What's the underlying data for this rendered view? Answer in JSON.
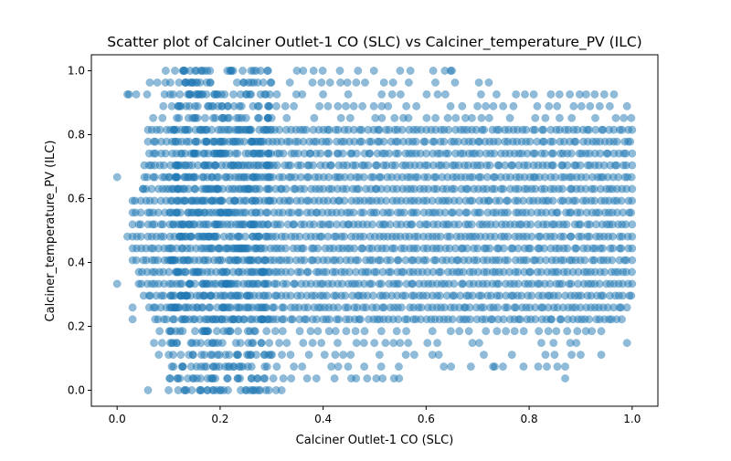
{
  "chart_data": {
    "type": "scatter",
    "title": "Scatter plot of Calciner Outlet-1 CO (SLC) vs Calciner_temperature_PV (ILC)",
    "xlabel": "Calciner Outlet-1 CO (SLC)",
    "ylabel": "Calciner_temperature_PV (ILC)",
    "xlim": [
      -0.05,
      1.05
    ],
    "ylim": [
      -0.05,
      1.05
    ],
    "xticks": [
      "0.0",
      "0.2",
      "0.4",
      "0.6",
      "0.8",
      "1.0"
    ],
    "yticks": [
      "0.0",
      "0.2",
      "0.4",
      "0.6",
      "0.8",
      "1.0"
    ],
    "grid": false,
    "legend": "none",
    "marker_color": "#1f77b4",
    "marker_alpha": 0.5,
    "y_levels": [
      0.0,
      0.037,
      0.074,
      0.111,
      0.148,
      0.185,
      0.222,
      0.259,
      0.296,
      0.333,
      0.37,
      0.407,
      0.444,
      0.481,
      0.519,
      0.556,
      0.593,
      0.63,
      0.667,
      0.704,
      0.741,
      0.778,
      0.815,
      0.852,
      0.889,
      0.926,
      0.963,
      1.0
    ],
    "y_level_x_ranges": [
      [
        0.1,
        0.32
      ],
      [
        0.09,
        0.55
      ],
      [
        0.09,
        0.87
      ],
      [
        0.08,
        0.9
      ],
      [
        0.07,
        0.93
      ],
      [
        0.08,
        0.96
      ],
      [
        0.07,
        0.98
      ],
      [
        0.06,
        0.99
      ],
      [
        0.05,
        1.0
      ],
      [
        0.04,
        1.0
      ],
      [
        0.04,
        1.0
      ],
      [
        0.03,
        1.0
      ],
      [
        0.03,
        1.0
      ],
      [
        0.03,
        1.0
      ],
      [
        0.03,
        1.0
      ],
      [
        0.03,
        1.0
      ],
      [
        0.03,
        1.0
      ],
      [
        0.05,
        1.0
      ],
      [
        0.05,
        1.0
      ],
      [
        0.05,
        1.0
      ],
      [
        0.06,
        1.0
      ],
      [
        0.06,
        1.0
      ],
      [
        0.06,
        1.0
      ],
      [
        0.07,
        1.0
      ],
      [
        0.07,
        0.99
      ],
      [
        0.02,
        0.98
      ],
      [
        0.06,
        0.74
      ],
      [
        0.06,
        0.65
      ]
    ],
    "outliers": [
      {
        "x": 0.0,
        "y": 0.667
      },
      {
        "x": 0.0,
        "y": 0.333
      },
      {
        "x": 0.02,
        "y": 0.481
      },
      {
        "x": 0.02,
        "y": 0.926
      },
      {
        "x": 0.05,
        "y": 0.63
      },
      {
        "x": 0.06,
        "y": 0.0
      },
      {
        "x": 0.03,
        "y": 0.222
      },
      {
        "x": 0.03,
        "y": 0.259
      },
      {
        "x": 0.87,
        "y": 0.037
      },
      {
        "x": 0.73,
        "y": 0.074
      },
      {
        "x": 0.65,
        "y": 1.0
      },
      {
        "x": 0.99,
        "y": 0.148
      },
      {
        "x": 0.94,
        "y": 0.111
      }
    ]
  }
}
